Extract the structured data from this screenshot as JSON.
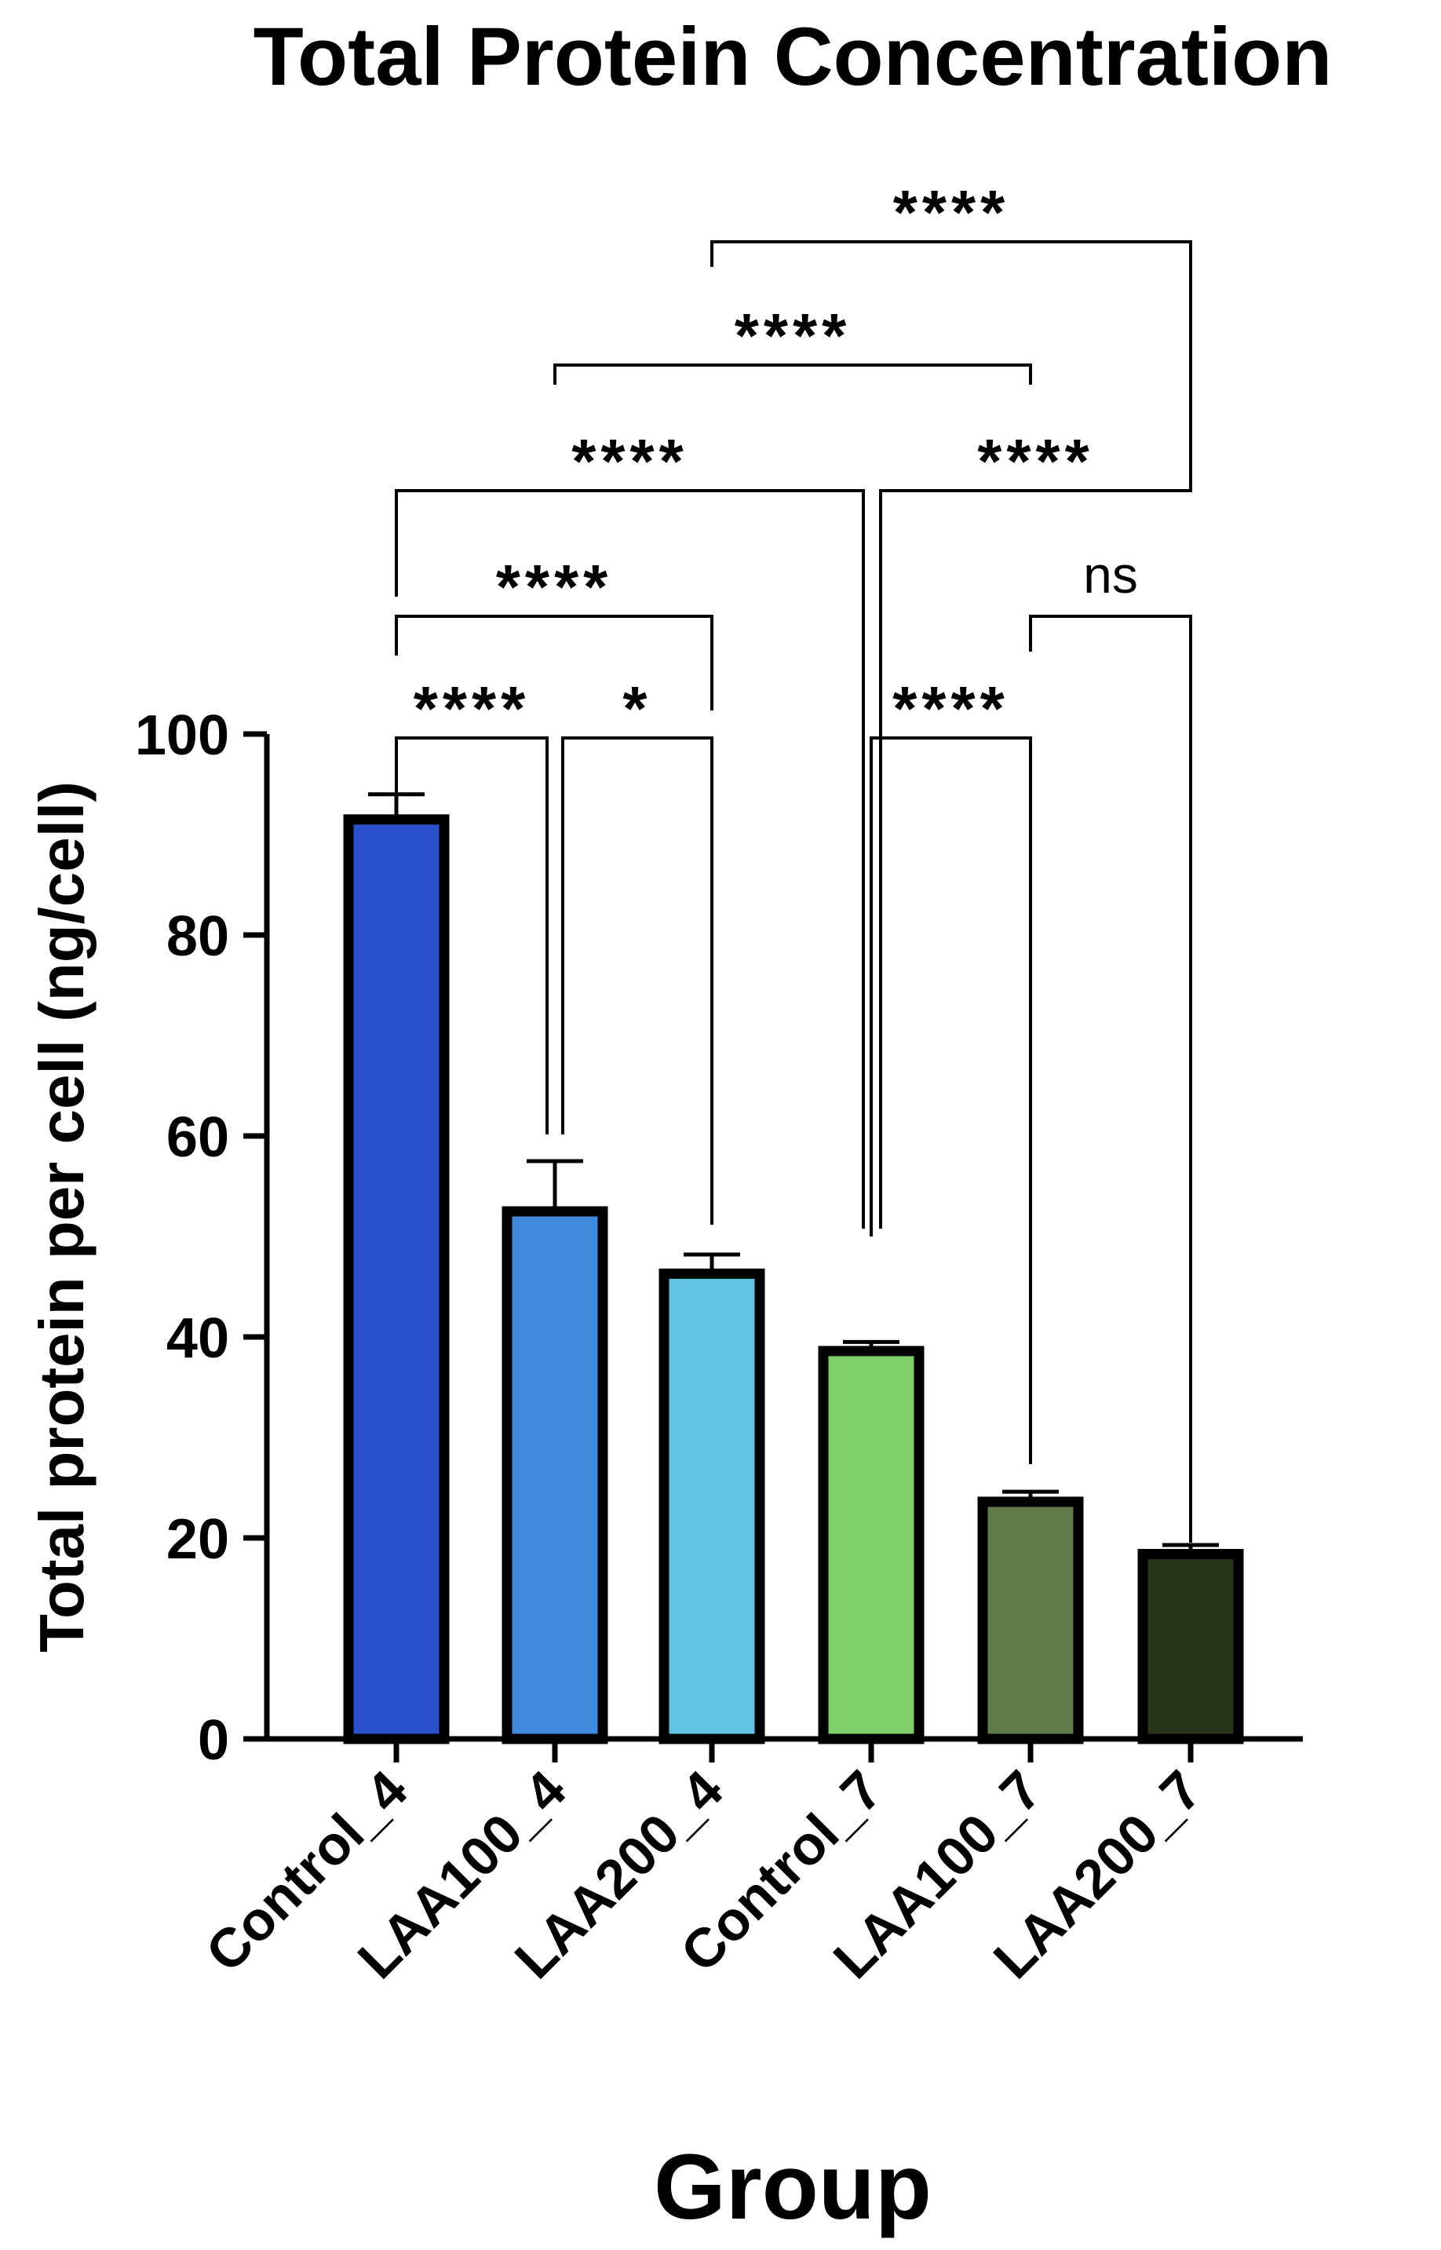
{
  "chart_data": {
    "type": "bar",
    "title": "Total Protein Concentration",
    "xlabel": "Group",
    "ylabel": "Total protein per cell (ng/cell)",
    "ylim": [
      0,
      100
    ],
    "yticks": [
      0,
      20,
      40,
      60,
      80,
      100
    ],
    "grid": false,
    "legend": "none",
    "categories": [
      "Control_4",
      "LAA100_4",
      "LAA200_4",
      "Control_7",
      "LAA100_7",
      "LAA200_7"
    ],
    "values": [
      91.5,
      52.5,
      46.3,
      38.6,
      23.6,
      18.4
    ],
    "errors": [
      2.5,
      5.0,
      1.9,
      0.9,
      1.0,
      0.9
    ],
    "colors": [
      "#2a51cc",
      "#3f8ade",
      "#62c3e2",
      "#80d06a",
      "#5f7b4a",
      "#273418"
    ],
    "comparisons": [
      {
        "from": 0,
        "to": 1,
        "label": "****"
      },
      {
        "from": 1,
        "to": 2,
        "label": "*"
      },
      {
        "from": 3,
        "to": 4,
        "label": "****"
      },
      {
        "from": 0,
        "to": 2,
        "label": "****"
      },
      {
        "from": 4,
        "to": 5,
        "label": "ns"
      },
      {
        "from": 0,
        "to": 3,
        "label": "****"
      },
      {
        "from": 3,
        "to": 5,
        "label": "****"
      },
      {
        "from": 1,
        "to": 4,
        "label": "****"
      },
      {
        "from": 2,
        "to": 5,
        "label": "****"
      }
    ]
  }
}
